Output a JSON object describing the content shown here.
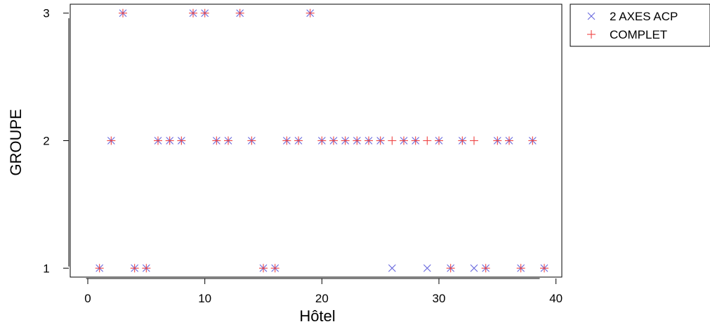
{
  "chart_data": {
    "type": "scatter",
    "xlabel": "Hôtel",
    "ylabel": "GROUPE",
    "xlim": [
      -1.5,
      40.5
    ],
    "ylim": [
      0.93,
      3.07
    ],
    "x_ticks": [
      0,
      10,
      20,
      30,
      40
    ],
    "x_tick_labels": [
      "0",
      "10",
      "20",
      "30",
      "40"
    ],
    "y_ticks": [
      1,
      2,
      3
    ],
    "y_tick_labels": [
      "1",
      "2",
      "3"
    ],
    "grid": false,
    "legend_position": "top-right",
    "series": [
      {
        "name": "2 AXES ACP",
        "marker": "x",
        "color": "#6666dd",
        "x": [
          1,
          2,
          3,
          4,
          5,
          6,
          7,
          8,
          9,
          10,
          11,
          12,
          13,
          14,
          15,
          16,
          17,
          18,
          19,
          20,
          21,
          22,
          23,
          24,
          25,
          26,
          27,
          28,
          29,
          30,
          31,
          32,
          33,
          34,
          35,
          36,
          37,
          38,
          39
        ],
        "y": [
          1,
          2,
          3,
          1,
          1,
          2,
          2,
          2,
          3,
          3,
          2,
          2,
          3,
          2,
          1,
          1,
          2,
          2,
          3,
          2,
          2,
          2,
          2,
          2,
          2,
          1,
          2,
          2,
          1,
          2,
          1,
          2,
          1,
          1,
          2,
          2,
          1,
          2,
          1
        ]
      },
      {
        "name": "COMPLET",
        "marker": "+",
        "color": "#ee4444",
        "x": [
          1,
          2,
          3,
          4,
          5,
          6,
          7,
          8,
          9,
          10,
          11,
          12,
          13,
          14,
          15,
          16,
          17,
          18,
          19,
          20,
          21,
          22,
          23,
          24,
          25,
          26,
          27,
          28,
          29,
          30,
          31,
          32,
          33,
          34,
          35,
          36,
          37,
          38,
          39
        ],
        "y": [
          1,
          2,
          3,
          1,
          1,
          2,
          2,
          2,
          3,
          3,
          2,
          2,
          3,
          2,
          1,
          1,
          2,
          2,
          3,
          2,
          2,
          2,
          2,
          2,
          2,
          2,
          2,
          2,
          2,
          2,
          1,
          2,
          2,
          1,
          2,
          2,
          1,
          2,
          1
        ]
      }
    ]
  }
}
